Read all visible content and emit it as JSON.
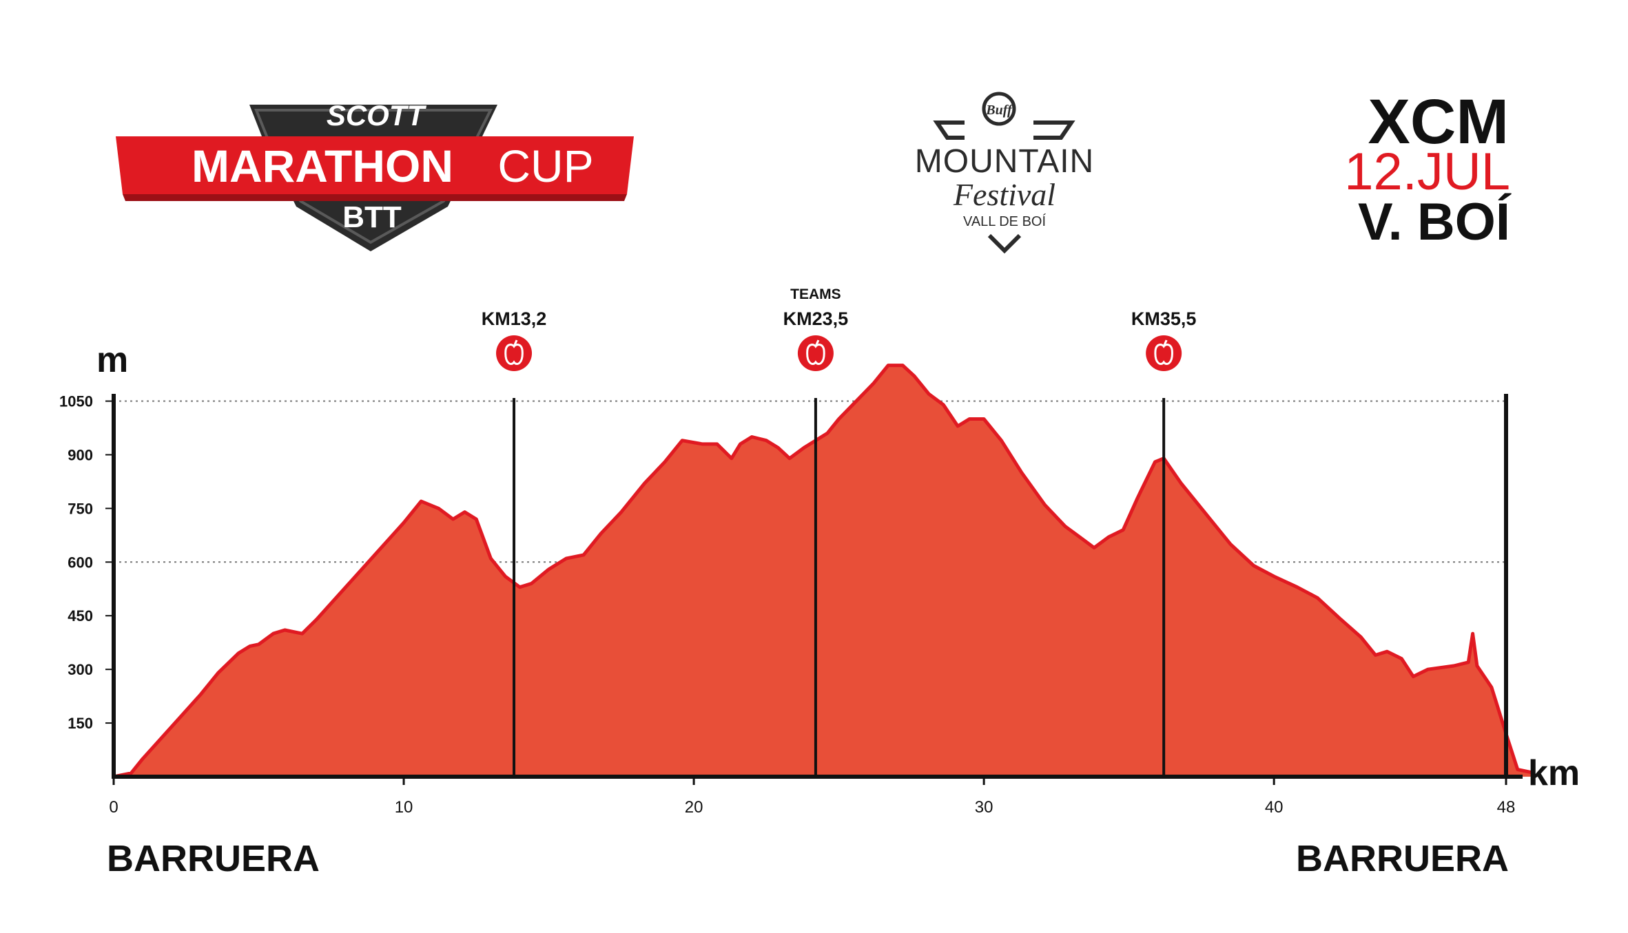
{
  "logo_left": {
    "brand": "SCOTT",
    "word1": "MARATHON",
    "word2": "CUP",
    "sub": "BTT"
  },
  "logo_center": {
    "badge": "Buff",
    "line1": "MOUNTAIN",
    "line2": "Festival",
    "line3": "VALL DE BOÍ"
  },
  "event": {
    "discipline": "XCM",
    "date": "12.JUL",
    "place": "V. BOÍ"
  },
  "colors": {
    "accent": "#e01a22",
    "fill": "#e84f38",
    "stroke": "#e01a22",
    "ink": "#111111",
    "logo_dark": "#2b2b2b"
  },
  "chart_data": {
    "type": "area",
    "xlabel": "km",
    "ylabel": "m",
    "xlim": [
      0,
      48
    ],
    "ylim": [
      0,
      1180
    ],
    "x_ticks": [
      {
        "value": 0,
        "label": "0"
      },
      {
        "value": 10,
        "label": "10"
      },
      {
        "value": 20,
        "label": "20"
      },
      {
        "value": 30,
        "label": "30"
      },
      {
        "value": 40,
        "label": "40"
      },
      {
        "value": 48,
        "label": "48"
      }
    ],
    "y_ticks": [
      "150",
      "300",
      "450",
      "600",
      "750",
      "900",
      "1050"
    ],
    "y_tick_values": [
      150,
      300,
      450,
      600,
      750,
      900,
      1050
    ],
    "grid_y": [
      600,
      1050
    ],
    "start_label": "BARRUERA",
    "end_label": "BARRUERA",
    "markers": [
      {
        "km": 13.8,
        "top_label": "",
        "label": "KM13,2",
        "icon": "apple-icon"
      },
      {
        "km": 24.2,
        "top_label": "TEAMS",
        "label": "KM23,5",
        "icon": "apple-icon"
      },
      {
        "km": 36.2,
        "top_label": "",
        "label": "KM35,5",
        "icon": "apple-icon"
      }
    ],
    "profile": [
      [
        0,
        0
      ],
      [
        0.6,
        10
      ],
      [
        1,
        50
      ],
      [
        2,
        140
      ],
      [
        3,
        230
      ],
      [
        3.6,
        290
      ],
      [
        4.3,
        345
      ],
      [
        4.7,
        365
      ],
      [
        5,
        370
      ],
      [
        5.5,
        400
      ],
      [
        5.9,
        410
      ],
      [
        6.5,
        400
      ],
      [
        7,
        440
      ],
      [
        8,
        530
      ],
      [
        9,
        620
      ],
      [
        10,
        710
      ],
      [
        10.6,
        770
      ],
      [
        11.2,
        750
      ],
      [
        11.7,
        720
      ],
      [
        12.1,
        740
      ],
      [
        12.5,
        720
      ],
      [
        13,
        610
      ],
      [
        13.5,
        560
      ],
      [
        14,
        530
      ],
      [
        14.4,
        540
      ],
      [
        15,
        580
      ],
      [
        15.6,
        610
      ],
      [
        16.2,
        620
      ],
      [
        16.8,
        680
      ],
      [
        17.5,
        740
      ],
      [
        18.3,
        820
      ],
      [
        19,
        880
      ],
      [
        19.6,
        940
      ],
      [
        20.3,
        930
      ],
      [
        20.8,
        930
      ],
      [
        21.3,
        890
      ],
      [
        21.6,
        930
      ],
      [
        22,
        950
      ],
      [
        22.5,
        940
      ],
      [
        22.9,
        920
      ],
      [
        23.3,
        890
      ],
      [
        23.8,
        920
      ],
      [
        24.2,
        940
      ],
      [
        24.6,
        960
      ],
      [
        25,
        1000
      ],
      [
        25.6,
        1050
      ],
      [
        26.2,
        1100
      ],
      [
        26.7,
        1150
      ],
      [
        27.2,
        1150
      ],
      [
        27.6,
        1120
      ],
      [
        28.1,
        1070
      ],
      [
        28.6,
        1040
      ],
      [
        29.1,
        980
      ],
      [
        29.5,
        1000
      ],
      [
        30,
        1000
      ],
      [
        30.6,
        940
      ],
      [
        31.3,
        850
      ],
      [
        32.1,
        760
      ],
      [
        32.8,
        700
      ],
      [
        33.3,
        670
      ],
      [
        33.8,
        640
      ],
      [
        34.3,
        670
      ],
      [
        34.8,
        690
      ],
      [
        35.3,
        780
      ],
      [
        35.9,
        880
      ],
      [
        36.2,
        890
      ],
      [
        36.8,
        820
      ],
      [
        37.6,
        740
      ],
      [
        38.5,
        650
      ],
      [
        39.3,
        590
      ],
      [
        40,
        560
      ],
      [
        40.8,
        530
      ],
      [
        41.5,
        500
      ],
      [
        42.3,
        440
      ],
      [
        43,
        390
      ],
      [
        43.5,
        340
      ],
      [
        43.9,
        350
      ],
      [
        44.4,
        330
      ],
      [
        44.8,
        280
      ],
      [
        45.3,
        300
      ],
      [
        46.2,
        310
      ],
      [
        46.7,
        320
      ],
      [
        46.85,
        400
      ],
      [
        47,
        310
      ],
      [
        47.5,
        250
      ],
      [
        48,
        120
      ],
      [
        48.4,
        20
      ],
      [
        49,
        10
      ]
    ]
  }
}
